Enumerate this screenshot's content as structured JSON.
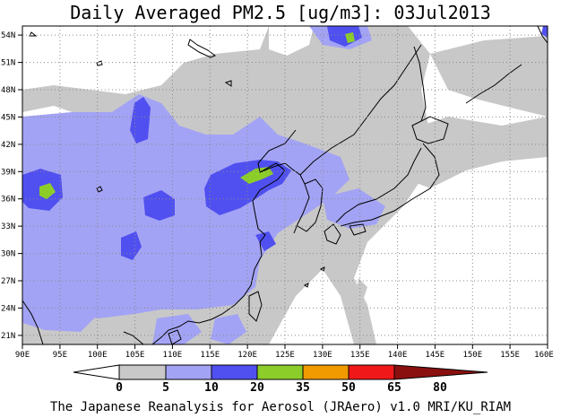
{
  "title": "Daily Averaged PM2.5 [ug/m3]: 03Jul2013",
  "footer": "The Japanese Reanalysis for Aerosol (JRAero) v1.0 MRI/KU_RIAM",
  "map": {
    "lon_range": [
      90,
      160
    ],
    "lat_range": [
      20,
      55
    ],
    "lon_ticks": [
      "90E",
      "95E",
      "100E",
      "105E",
      "110E",
      "115E",
      "120E",
      "125E",
      "130E",
      "135E",
      "140E",
      "145E",
      "150E",
      "155E",
      "160E"
    ],
    "lat_ticks": [
      "54N",
      "51N",
      "48N",
      "45N",
      "42N",
      "39N",
      "36N",
      "33N",
      "30N",
      "27N",
      "24N",
      "21N"
    ],
    "colors": {
      "land_0_5": "#ffffff",
      "level_5_10": "#c8c8c8",
      "level_10_20": "#a3a3f5",
      "level_20_35": "#5050f0",
      "level_35_50": "#8ccd2a"
    }
  },
  "colorbar": {
    "levels": [
      "0",
      "5",
      "10",
      "20",
      "35",
      "50",
      "65",
      "80"
    ],
    "colors": [
      "#ffffff",
      "#c8c8c8",
      "#a3a3f5",
      "#5050f0",
      "#8ccd2a",
      "#f09a00",
      "#f01818",
      "#8a1010"
    ]
  }
}
